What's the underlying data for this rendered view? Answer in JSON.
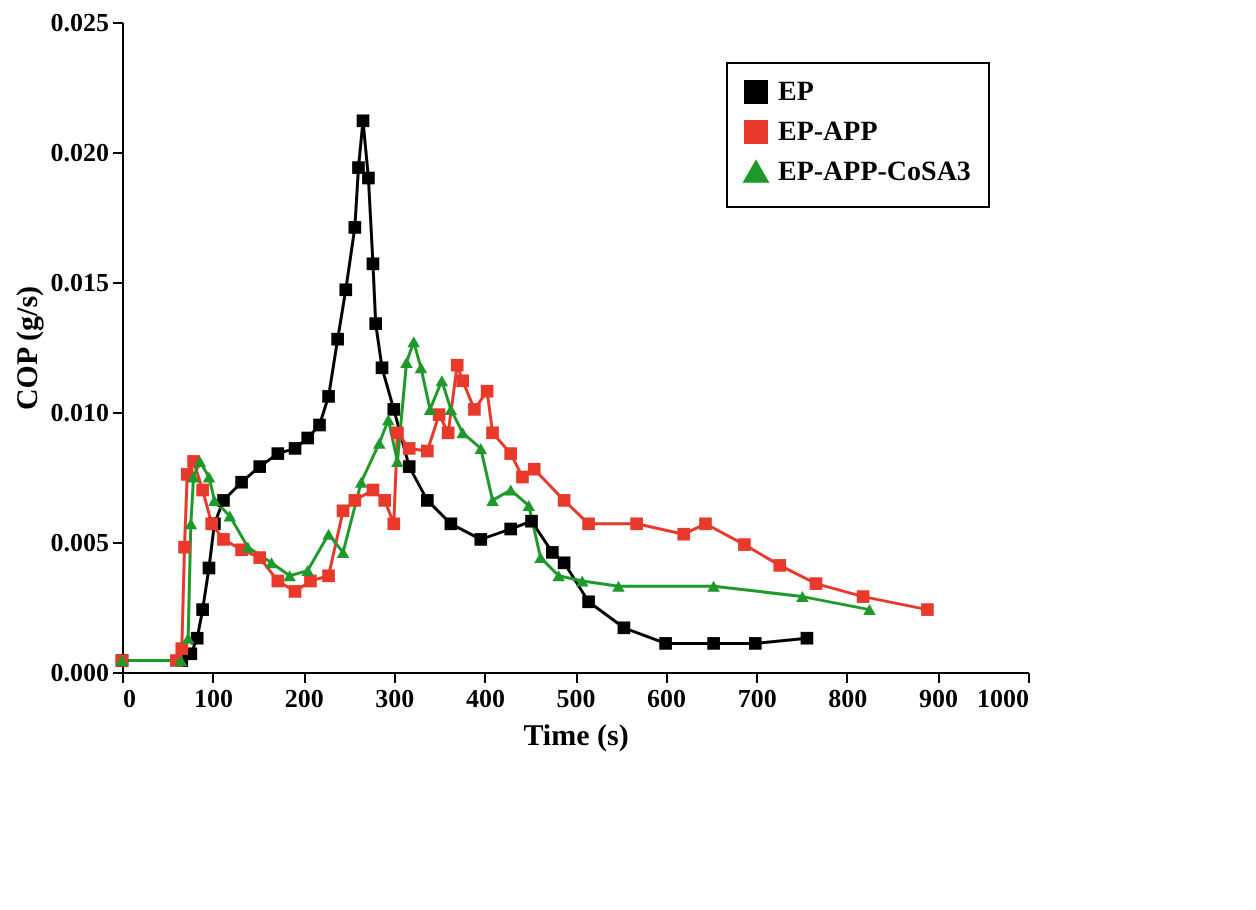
{
  "chart_data": {
    "type": "line",
    "xlabel": "Time (s)",
    "ylabel": "COP (g/s)",
    "xlim": [
      0,
      1000
    ],
    "xticks": [
      0,
      100,
      200,
      300,
      400,
      500,
      600,
      700,
      800,
      900,
      1000
    ],
    "ylim": [
      0,
      0.025
    ],
    "yticks": [
      {
        "value": 0,
        "label": "0.000"
      },
      {
        "value": 0.005,
        "label": "0.005"
      },
      {
        "value": 0.01,
        "label": "0.010"
      },
      {
        "value": 0.015,
        "label": "0.015"
      },
      {
        "value": 0.02,
        "label": "0.020"
      },
      {
        "value": 0.025,
        "label": "0.025"
      }
    ],
    "grid": false,
    "legend": "top right",
    "line_style": "solid",
    "series": [
      {
        "name": "EP",
        "color": "#000000",
        "marker": "square",
        "x": [
          0,
          66,
          76,
          83,
          89,
          96,
          102,
          112,
          132,
          152,
          172,
          191,
          205,
          218,
          228,
          238,
          247,
          257,
          261,
          266,
          272,
          277,
          280,
          287,
          300,
          317,
          337,
          363,
          396,
          429,
          452,
          475,
          488,
          515,
          554,
          600,
          653,
          699,
          756
        ],
        "values": [
          0.00044,
          0.00044,
          0.0007,
          0.0013,
          0.0024,
          0.004,
          0.0057,
          0.0066,
          0.0073,
          0.0079,
          0.0084,
          0.0086,
          0.009,
          0.0095,
          0.0106,
          0.0128,
          0.0147,
          0.0171,
          0.0194,
          0.0212,
          0.019,
          0.0157,
          0.0134,
          0.0117,
          0.0101,
          0.0079,
          0.0066,
          0.0057,
          0.0051,
          0.0055,
          0.0058,
          0.0046,
          0.0042,
          0.0027,
          0.0017,
          0.0011,
          0.0011,
          0.0011,
          0.0013
        ]
      },
      {
        "name": "EP-APP",
        "color": "#e8392b",
        "marker": "square",
        "x": [
          0,
          60,
          66,
          69,
          72,
          79,
          89,
          99,
          112,
          132,
          152,
          172,
          191,
          208,
          228,
          244,
          257,
          277,
          290,
          300,
          304,
          317,
          337,
          350,
          360,
          370,
          376,
          389,
          403,
          409,
          429,
          442,
          455,
          488,
          515,
          568,
          620,
          644,
          687,
          726,
          766,
          818,
          889
        ],
        "values": [
          0.00044,
          0.00044,
          0.0009,
          0.0048,
          0.0076,
          0.0081,
          0.007,
          0.0057,
          0.0051,
          0.0047,
          0.0044,
          0.0035,
          0.0031,
          0.0035,
          0.0037,
          0.0062,
          0.0066,
          0.007,
          0.0066,
          0.0057,
          0.0092,
          0.0086,
          0.0085,
          0.0099,
          0.0092,
          0.0118,
          0.0112,
          0.0101,
          0.0108,
          0.0092,
          0.0084,
          0.0075,
          0.0078,
          0.0066,
          0.0057,
          0.0057,
          0.0053,
          0.0057,
          0.0049,
          0.0041,
          0.0034,
          0.0029,
          0.0024
        ]
      },
      {
        "name": "EP-APP-CoSA3",
        "color": "#1f9a2a",
        "marker": "triangle",
        "x": [
          0,
          65,
          73,
          76,
          79,
          86,
          96,
          102,
          119,
          139,
          165,
          185,
          205,
          228,
          244,
          264,
          284,
          294,
          304,
          314,
          322,
          330,
          340,
          353,
          363,
          376,
          396,
          409,
          429,
          449,
          462,
          482,
          508,
          548,
          653,
          751,
          825
        ],
        "values": [
          0.00044,
          0.00044,
          0.0013,
          0.0057,
          0.0075,
          0.0081,
          0.0075,
          0.0066,
          0.006,
          0.0048,
          0.0042,
          0.0037,
          0.0039,
          0.0053,
          0.0046,
          0.0073,
          0.0088,
          0.0097,
          0.0081,
          0.0119,
          0.0127,
          0.0117,
          0.0101,
          0.0112,
          0.0101,
          0.0092,
          0.0086,
          0.0066,
          0.007,
          0.0064,
          0.0044,
          0.0037,
          0.0035,
          0.0033,
          0.0033,
          0.0029,
          0.0024
        ]
      }
    ]
  }
}
